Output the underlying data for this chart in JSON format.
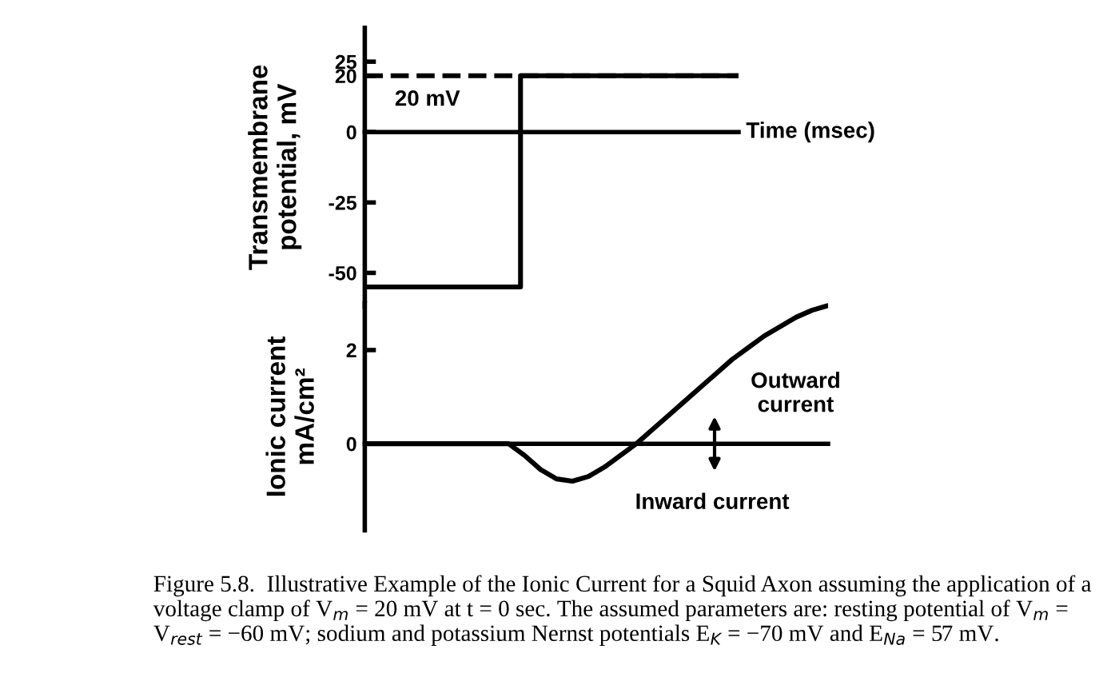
{
  "chart_data": [
    {
      "type": "step",
      "ylabel": "Transmembrane\npotential, mV",
      "xlabel": "Time (msec)",
      "categories": [
        null,
        null,
        null,
        null,
        null,
        null,
        null,
        null,
        null,
        null,
        null,
        null,
        null,
        null,
        null,
        null,
        null,
        null,
        null,
        null,
        null,
        null,
        null,
        null,
        null
      ],
      "series": [
        {
          "color": "#000000",
          "values": [
            -55,
            -55,
            -55,
            -55,
            -55,
            -55,
            -55,
            -55,
            -55,
            -55,
            20,
            20,
            20,
            20,
            20,
            20,
            20,
            20,
            20,
            20,
            20,
            20,
            20,
            20,
            20
          ]
        }
      ],
      "ylim": [
        -62,
        37
      ],
      "yticks": [
        -50,
        -25,
        0,
        20,
        25
      ],
      "ref_lines": [
        {
          "axis": "y",
          "value": 20,
          "label": "20 mV",
          "line_style": "dashed",
          "color": "#000000"
        }
      ],
      "tick_labels": "y",
      "grid": false,
      "legend": false,
      "marker": "none",
      "line_style": "solid"
    },
    {
      "type": "line",
      "ylabel": "Ionic current\nmA/cm²",
      "categories": [
        null,
        null,
        null,
        null,
        null,
        null,
        null,
        null,
        null,
        null,
        null,
        null,
        null,
        null,
        null,
        null,
        null,
        null,
        null,
        null,
        null,
        null,
        null,
        null,
        null,
        null,
        null,
        null,
        null,
        null
      ],
      "series": [
        {
          "color": "#000000",
          "values": [
            0,
            0,
            0,
            0,
            0,
            0,
            0,
            0,
            0,
            0,
            -0.25,
            -0.55,
            -0.75,
            -0.8,
            -0.7,
            -0.5,
            -0.25,
            0,
            0.3,
            0.6,
            0.9,
            1.2,
            1.5,
            1.8,
            2.05,
            2.3,
            2.5,
            2.7,
            2.85,
            2.95
          ]
        }
      ],
      "ylim": [
        -1.85,
        3.0
      ],
      "yticks": [
        0,
        2
      ],
      "annotations": [
        "Outward\ncurrent",
        "Inward current",
        "Figure 5.8.  Illustrative Example of the Ionic Current for a Squid Axon assuming the application of a voltage clamp of V$_{m}$ = 20 mV at t = 0 sec. The assumed parameters are: resting potential of V$_{m}$ = V$_{rest}$ = −60 mV; sodium and potassium Nernst potentials E$_{K}$ = −70 mV and E$_{Na}$ = 57 mV."
      ],
      "tick_labels": "y",
      "legend": false,
      "marker": "none",
      "line_style": "solid"
    }
  ]
}
